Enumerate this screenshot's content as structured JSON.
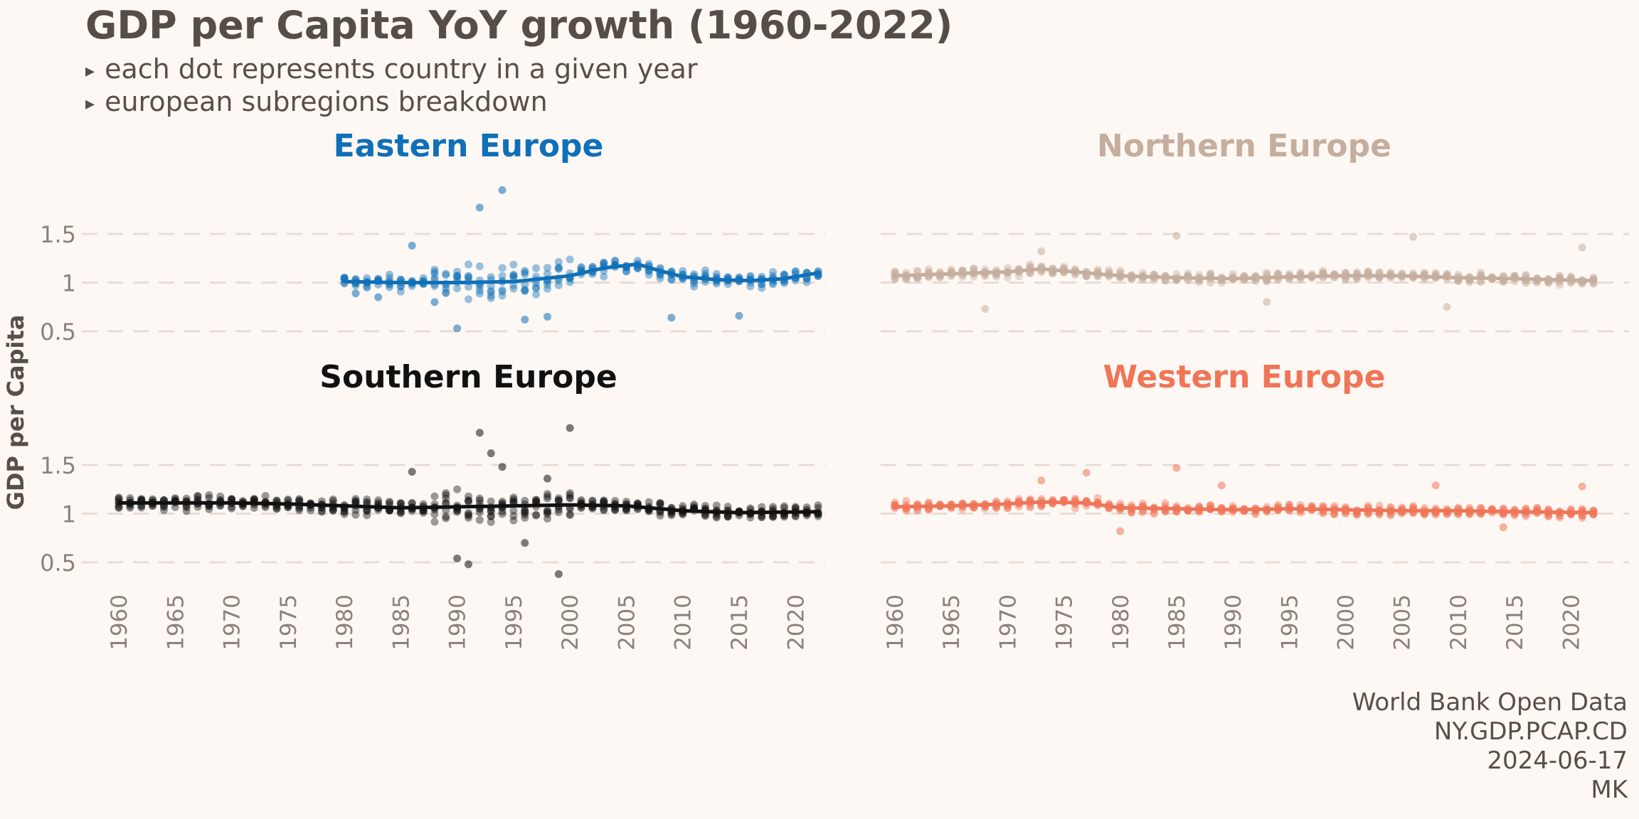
{
  "title": "GDP per Capita YoY growth (1960-2022)",
  "subtitle_lines": [
    "each dot represents country in a given year",
    "european subregions breakdown"
  ],
  "bullet": "▸",
  "caption_lines": [
    "World Bank Open Data",
    "NY.GDP.PCAP.CD",
    "2024-06-17",
    "MK"
  ],
  "chart_data": {
    "type": "scatter",
    "ylabel": "GDP per Capita",
    "xlim": [
      1960,
      2022
    ],
    "ylim": [
      0.35,
      1.95
    ],
    "x_ticks": [
      1960,
      1965,
      1970,
      1975,
      1980,
      1985,
      1990,
      1995,
      2000,
      2005,
      2010,
      2015,
      2020
    ],
    "y_ticks": [
      0.5,
      1,
      1.5
    ],
    "y_tick_labels": [
      "0.5",
      "1",
      "1.5"
    ],
    "grid": "horizontal dashed",
    "panels": [
      {
        "name": "Eastern Europe",
        "color": "#0f6fb8",
        "start_year": 1980,
        "trend": [
          [
            1980,
            1.01
          ],
          [
            1985,
            1.0
          ],
          [
            1990,
            1.0
          ],
          [
            1995,
            1.01
          ],
          [
            2000,
            1.07
          ],
          [
            2003,
            1.15
          ],
          [
            2006,
            1.19
          ],
          [
            2008,
            1.12
          ],
          [
            2010,
            1.06
          ],
          [
            2013,
            1.03
          ],
          [
            2016,
            1.02
          ],
          [
            2019,
            1.04
          ],
          [
            2022,
            1.1
          ]
        ],
        "notable_points": [
          [
            1981,
            0.89
          ],
          [
            1983,
            0.85
          ],
          [
            1986,
            1.38
          ],
          [
            1988,
            0.8
          ],
          [
            1990,
            0.53
          ],
          [
            1992,
            1.77
          ],
          [
            1994,
            1.95
          ],
          [
            1996,
            0.62
          ],
          [
            1998,
            0.65
          ],
          [
            2009,
            0.64
          ],
          [
            2015,
            0.66
          ]
        ]
      },
      {
        "name": "Northern Europe",
        "color": "#c5ae9e",
        "start_year": 1960,
        "trend": [
          [
            1960,
            1.07
          ],
          [
            1965,
            1.09
          ],
          [
            1970,
            1.11
          ],
          [
            1973,
            1.14
          ],
          [
            1977,
            1.1
          ],
          [
            1980,
            1.07
          ],
          [
            1985,
            1.05
          ],
          [
            1990,
            1.04
          ],
          [
            1995,
            1.06
          ],
          [
            2000,
            1.07
          ],
          [
            2005,
            1.07
          ],
          [
            2010,
            1.05
          ],
          [
            2015,
            1.04
          ],
          [
            2022,
            1.02
          ]
        ],
        "notable_points": [
          [
            1968,
            0.73
          ],
          [
            1973,
            1.32
          ],
          [
            1985,
            1.48
          ],
          [
            1993,
            0.8
          ],
          [
            2006,
            1.47
          ],
          [
            2009,
            0.75
          ],
          [
            2021,
            1.36
          ]
        ]
      },
      {
        "name": "Southern Europe",
        "color": "#111111",
        "start_year": 1960,
        "trend": [
          [
            1960,
            1.11
          ],
          [
            1965,
            1.11
          ],
          [
            1970,
            1.11
          ],
          [
            1975,
            1.1
          ],
          [
            1980,
            1.08
          ],
          [
            1985,
            1.06
          ],
          [
            1990,
            1.07
          ],
          [
            1995,
            1.08
          ],
          [
            2000,
            1.09
          ],
          [
            2005,
            1.08
          ],
          [
            2010,
            1.03
          ],
          [
            2015,
            1.01
          ],
          [
            2022,
            1.02
          ]
        ],
        "notable_points": [
          [
            1990,
            0.54
          ],
          [
            1991,
            0.48
          ],
          [
            1992,
            1.83
          ],
          [
            1993,
            1.62
          ],
          [
            1994,
            1.48
          ],
          [
            1996,
            0.7
          ],
          [
            1999,
            0.38
          ],
          [
            2000,
            1.88
          ],
          [
            1986,
            1.43
          ],
          [
            1998,
            1.36
          ]
        ]
      },
      {
        "name": "Western Europe",
        "color": "#f07557",
        "start_year": 1960,
        "trend": [
          [
            1960,
            1.07
          ],
          [
            1965,
            1.08
          ],
          [
            1970,
            1.1
          ],
          [
            1973,
            1.12
          ],
          [
            1977,
            1.11
          ],
          [
            1980,
            1.06
          ],
          [
            1985,
            1.05
          ],
          [
            1990,
            1.04
          ],
          [
            1995,
            1.05
          ],
          [
            2000,
            1.04
          ],
          [
            2005,
            1.03
          ],
          [
            2010,
            1.03
          ],
          [
            2015,
            1.02
          ],
          [
            2022,
            1.01
          ]
        ],
        "notable_points": [
          [
            1973,
            1.34
          ],
          [
            1977,
            1.42
          ],
          [
            1980,
            0.82
          ],
          [
            1985,
            1.47
          ],
          [
            1989,
            1.29
          ],
          [
            2008,
            1.29
          ],
          [
            2021,
            1.28
          ],
          [
            2014,
            0.86
          ]
        ]
      }
    ]
  }
}
